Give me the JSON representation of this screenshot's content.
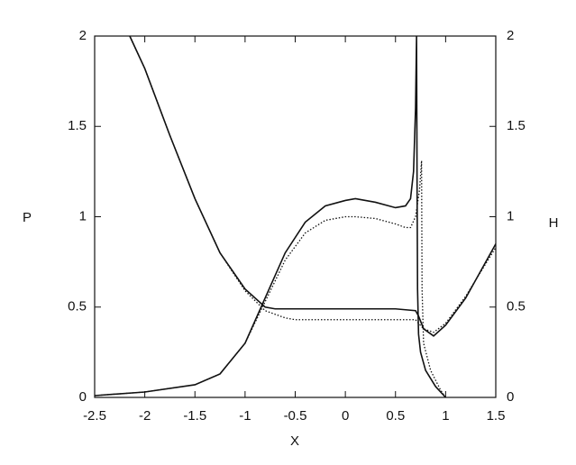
{
  "chart_data": {
    "type": "line",
    "xlabel": "X",
    "ylabel": "P",
    "y2label": "H",
    "xlim": [
      -2.5,
      1.5
    ],
    "xticks": [
      -2.5,
      -2,
      -1.5,
      -1,
      -0.5,
      0,
      0.5,
      1,
      1.5
    ],
    "ylim": [
      0,
      2
    ],
    "yticks": [
      0,
      0.5,
      1,
      1.5,
      2
    ],
    "y2lim": [
      0,
      2
    ],
    "y2ticks": [
      0,
      0.5,
      1,
      1.5,
      2
    ],
    "series": [
      {
        "color": "#111111",
        "style": "solid",
        "axis": "y",
        "x": [
          -2.5,
          -2,
          -1.5,
          -1.25,
          -1,
          -0.8,
          -0.6,
          -0.4,
          -0.2,
          0,
          0.1,
          0.3,
          0.5,
          0.6,
          0.65,
          0.68,
          0.7,
          0.71,
          0.715,
          0.72,
          0.73,
          0.75,
          0.8,
          0.9,
          1.0
        ],
        "values": [
          0.01,
          0.03,
          0.07,
          0.13,
          0.3,
          0.55,
          0.8,
          0.97,
          1.06,
          1.09,
          1.1,
          1.08,
          1.05,
          1.06,
          1.1,
          1.25,
          1.6,
          2.0,
          1.2,
          0.6,
          0.35,
          0.25,
          0.15,
          0.06,
          0
        ]
      },
      {
        "color": "#111111",
        "style": "dotted",
        "axis": "y",
        "x": [
          -2.5,
          -2,
          -1.5,
          -1.25,
          -1,
          -0.8,
          -0.6,
          -0.4,
          -0.2,
          0,
          0.1,
          0.3,
          0.5,
          0.6,
          0.65,
          0.7,
          0.74,
          0.76,
          0.765,
          0.78,
          0.85,
          0.95,
          1.0
        ],
        "values": [
          0.01,
          0.03,
          0.07,
          0.13,
          0.3,
          0.53,
          0.76,
          0.91,
          0.98,
          1.0,
          1.0,
          0.99,
          0.96,
          0.94,
          0.94,
          1.0,
          1.15,
          1.31,
          0.6,
          0.3,
          0.15,
          0.04,
          0
        ]
      },
      {
        "color": "#111111",
        "style": "solid",
        "axis": "y2",
        "x": [
          -2.15,
          -2,
          -1.75,
          -1.5,
          -1.25,
          -1,
          -0.8,
          -0.7,
          -0.5,
          0,
          0.5,
          0.7,
          0.73,
          0.78,
          0.88,
          1.0,
          1.2,
          1.5
        ],
        "values": [
          2.0,
          1.82,
          1.45,
          1.1,
          0.8,
          0.6,
          0.5,
          0.49,
          0.49,
          0.49,
          0.49,
          0.48,
          0.45,
          0.38,
          0.34,
          0.4,
          0.55,
          0.85
        ]
      },
      {
        "color": "#111111",
        "style": "dotted",
        "axis": "y2",
        "x": [
          -2.15,
          -2,
          -1.75,
          -1.5,
          -1.25,
          -1,
          -0.8,
          -0.6,
          -0.5,
          0,
          0.5,
          0.7,
          0.73,
          0.78,
          0.88,
          1.0,
          1.2,
          1.5
        ],
        "values": [
          2.0,
          1.82,
          1.45,
          1.1,
          0.8,
          0.59,
          0.48,
          0.44,
          0.43,
          0.43,
          0.43,
          0.43,
          0.41,
          0.38,
          0.36,
          0.41,
          0.56,
          0.83
        ]
      }
    ]
  }
}
